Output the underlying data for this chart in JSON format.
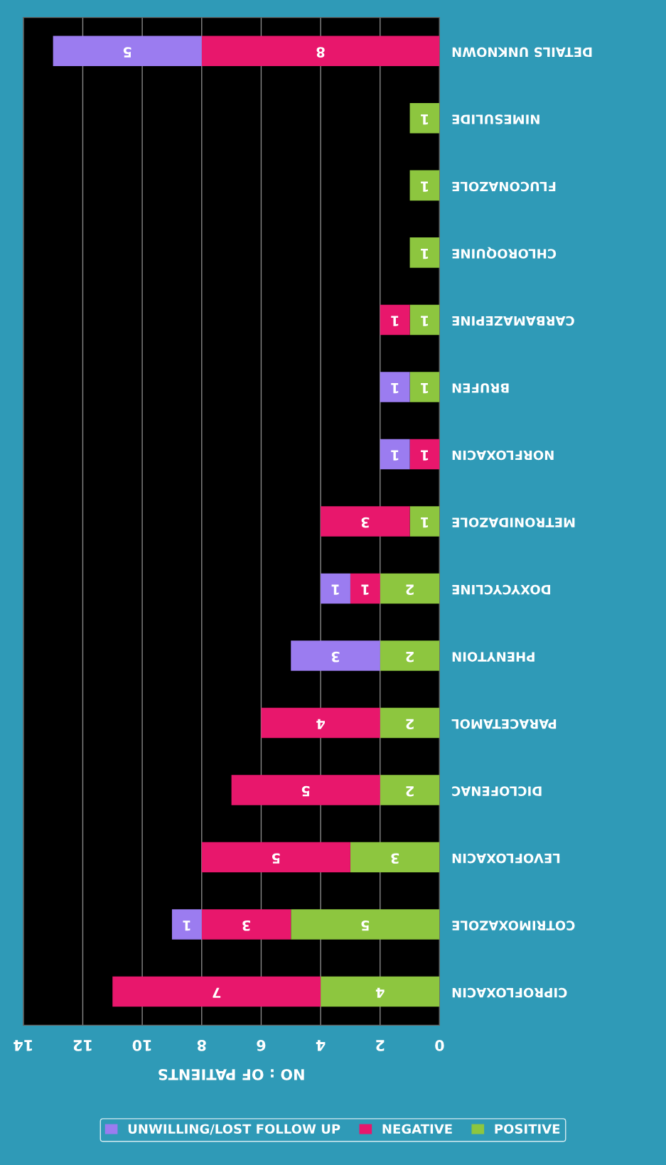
{
  "chart_data": {
    "type": "bar",
    "orientation": "horizontal",
    "stacked": true,
    "categories": [
      "DETAILS UNKNOWN",
      "NIMESULIDE",
      "FLUCONAZOLE",
      "CHLOROQUINE",
      "CARBAMAZEPINE",
      "BRUFEN",
      "NORFLOXACIN",
      "METRONIDAZOLE",
      "DOXYCYCLINE",
      "PHENYTOIN",
      "PARACETAMOL",
      "DICLOFENAC",
      "LEVOFLOXACIN",
      "COTRIMOXAZOLE",
      "CIPROFLOXACIN"
    ],
    "series": [
      {
        "name": "POSITIVE",
        "color": "#8dc63f",
        "values": [
          null,
          1,
          1,
          1,
          1,
          1,
          null,
          1,
          2,
          2,
          2,
          2,
          3,
          5,
          4
        ]
      },
      {
        "name": "NEGATIVE",
        "color": "#e8176c",
        "values": [
          8,
          null,
          null,
          null,
          1,
          null,
          1,
          3,
          1,
          null,
          4,
          5,
          5,
          3,
          7
        ]
      },
      {
        "name": "UNWILLING/LOST FOLLOW UP",
        "color": "#9b7cf0",
        "values": [
          5,
          null,
          null,
          null,
          null,
          1,
          1,
          null,
          1,
          3,
          null,
          null,
          null,
          1,
          null
        ]
      }
    ],
    "xlabel": "NO : OF PATIENTS",
    "xlim": [
      14,
      0
    ],
    "xticks": [
      0,
      2,
      4,
      6,
      8,
      10,
      12,
      14
    ],
    "grid": "x",
    "legend": "bottom",
    "data_labels": true
  }
}
